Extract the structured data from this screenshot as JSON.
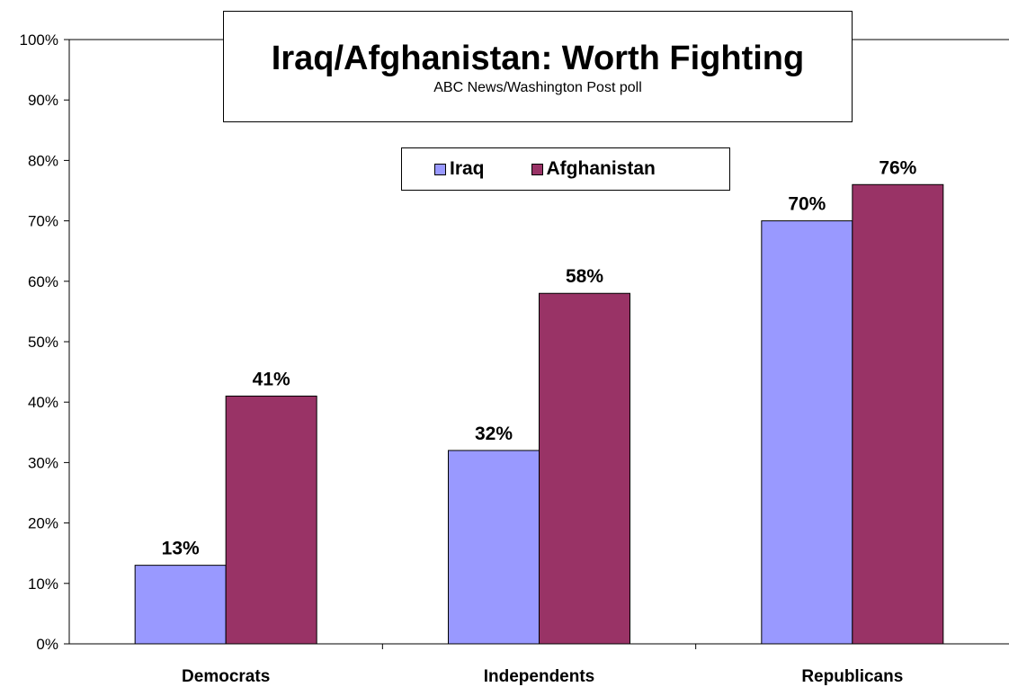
{
  "chart_data": {
    "type": "bar",
    "title": "Iraq/Afghanistan: Worth Fighting",
    "subtitle": "ABC News/Washington Post poll",
    "categories": [
      "Democrats",
      "Independents",
      "Republicans"
    ],
    "series": [
      {
        "name": "Iraq",
        "values": [
          13,
          32,
          70
        ],
        "labels": [
          "13%",
          "32%",
          "70%"
        ],
        "color": "#9999ff"
      },
      {
        "name": "Afghanistan",
        "values": [
          41,
          58,
          76
        ],
        "labels": [
          "41%",
          "58%",
          "76%"
        ],
        "color": "#993366"
      }
    ],
    "ylim": [
      0,
      100
    ],
    "yticks": [
      "0%",
      "10%",
      "20%",
      "30%",
      "40%",
      "50%",
      "60%",
      "70%",
      "80%",
      "90%",
      "100%"
    ],
    "xlabel": "",
    "ylabel": "",
    "grid": false,
    "legend": "top-center"
  }
}
